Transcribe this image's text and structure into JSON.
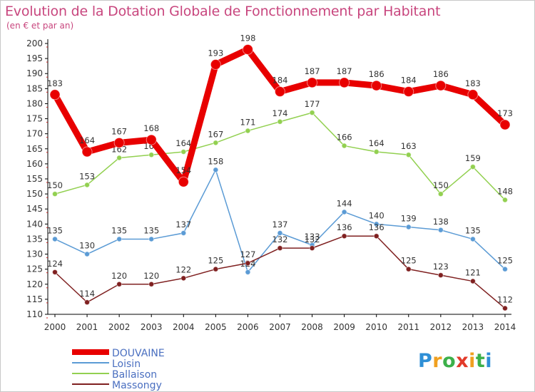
{
  "title": "Evolution de la Dotation Globale de Fonctionnement par Habitant",
  "subtitle": "(en € et par an)",
  "logo": {
    "letters": [
      "P",
      "r",
      "o",
      "x",
      "i",
      "t",
      "i"
    ],
    "colors": [
      "#2e8fd6",
      "#f0a020",
      "#3cb04a",
      "#e23a2a",
      "#f0a020",
      "#3cb04a",
      "#2e8fd6"
    ]
  },
  "colors": {
    "title": "#c8467e",
    "axis": "#000000",
    "grid_tick": "#d02020",
    "label": "#333333"
  },
  "chart_data": {
    "type": "line",
    "x": [
      "2000",
      "2001",
      "2002",
      "2003",
      "2004",
      "2005",
      "2006",
      "2007",
      "2008",
      "2009",
      "2010",
      "2011",
      "2012",
      "2013",
      "2014"
    ],
    "ylim": [
      110,
      200
    ],
    "yticks": [
      110,
      115,
      120,
      125,
      130,
      135,
      140,
      145,
      150,
      155,
      160,
      165,
      170,
      175,
      180,
      185,
      190,
      195,
      200
    ],
    "legend_position": "bottom-left",
    "series": [
      {
        "name": "DOUVAINE",
        "color": "#e80000",
        "width": 9,
        "marker_r": 7,
        "emphasis": true,
        "values": [
          183,
          164,
          167,
          168,
          154,
          193,
          198,
          184,
          187,
          187,
          186,
          184,
          186,
          183,
          173
        ]
      },
      {
        "name": "Loisin",
        "color": "#5b9bd5",
        "width": 1.5,
        "marker_r": 3.5,
        "values": [
          135,
          130,
          135,
          135,
          137,
          158,
          124,
          137,
          133,
          144,
          140,
          139,
          138,
          135,
          125
        ]
      },
      {
        "name": "Ballaison",
        "color": "#92d050",
        "width": 1.5,
        "marker_r": 3.5,
        "values": [
          150,
          153,
          162,
          163,
          164,
          167,
          171,
          174,
          177,
          166,
          164,
          163,
          150,
          159,
          148
        ]
      },
      {
        "name": "Massongy",
        "color": "#7f2020",
        "width": 1.5,
        "marker_r": 3.5,
        "values": [
          124,
          114,
          120,
          120,
          122,
          125,
          127,
          132,
          132,
          136,
          136,
          125,
          123,
          121,
          112
        ]
      }
    ]
  }
}
